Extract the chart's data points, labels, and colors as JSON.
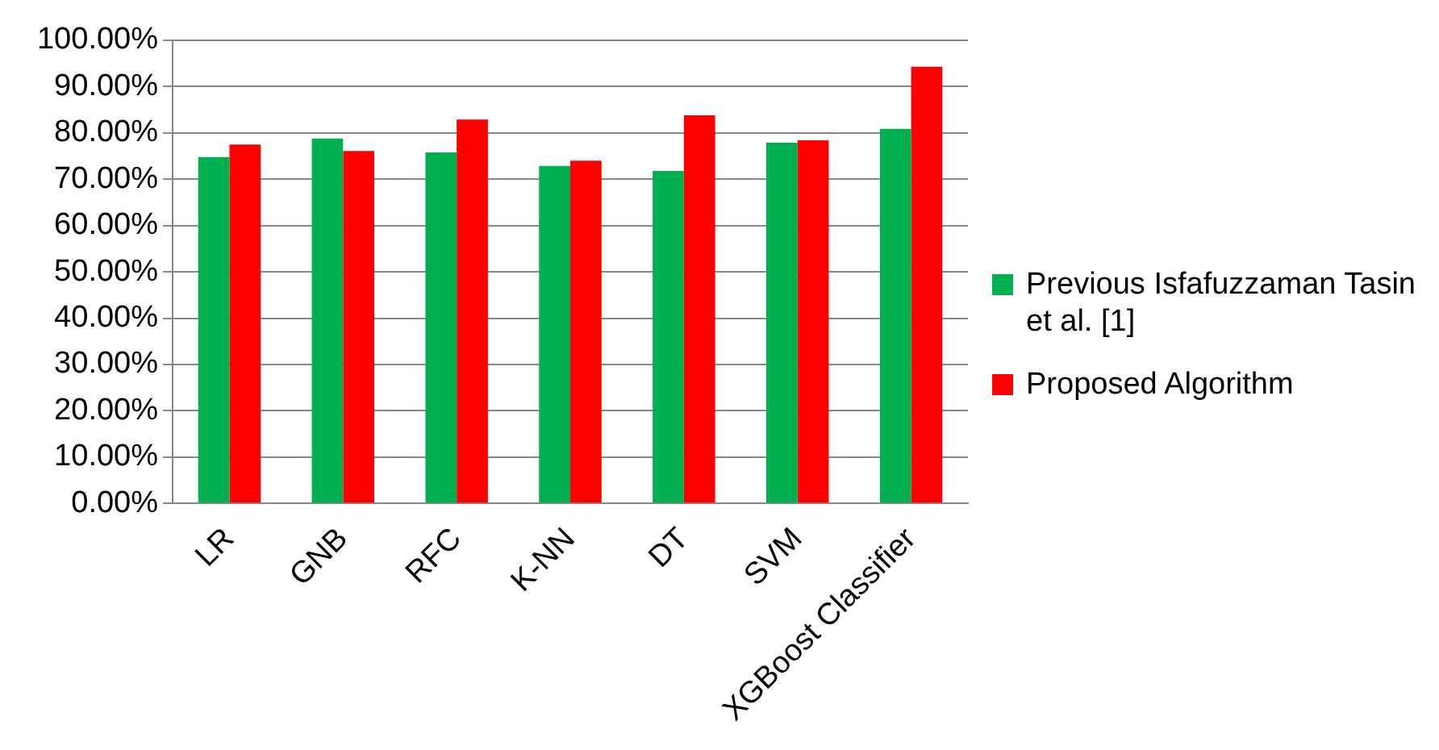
{
  "chart_data": {
    "type": "bar",
    "categories": [
      "LR",
      "GNB",
      "RFC",
      "K-NN",
      "DT",
      "SVM",
      "XGBoost Classifier"
    ],
    "series": [
      {
        "name": "Previous Isfafuzzaman Tasin et al. [1]",
        "color": "#00b050",
        "values": [
          74.8,
          78.8,
          75.8,
          72.9,
          71.8,
          77.9,
          80.9
        ]
      },
      {
        "name": "Proposed Algorithm",
        "color": "#ff0000",
        "values": [
          77.5,
          76.1,
          82.9,
          74,
          83.8,
          78.4,
          94.3
        ]
      }
    ],
    "ylim": [
      0,
      100
    ],
    "yticks": [
      {
        "value": 0,
        "label": "0.00%"
      },
      {
        "value": 10,
        "label": "10.00%"
      },
      {
        "value": 20,
        "label": "20.00%"
      },
      {
        "value": 30,
        "label": "30.00%"
      },
      {
        "value": 40,
        "label": "40.00%"
      },
      {
        "value": 50,
        "label": "50.00%"
      },
      {
        "value": 60,
        "label": "60.00%"
      },
      {
        "value": 70,
        "label": "70.00%"
      },
      {
        "value": 80,
        "label": "80.00%"
      },
      {
        "value": 90,
        "label": "90.00%"
      },
      {
        "value": 100,
        "label": "100.00%"
      }
    ],
    "grid": "y",
    "legend": "right"
  }
}
